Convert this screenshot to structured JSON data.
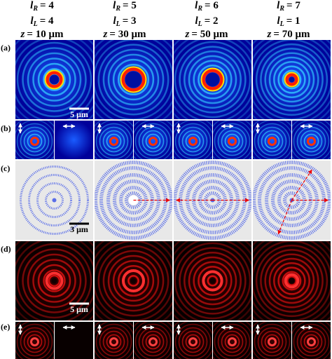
{
  "header": {
    "rows": [
      {
        "symbol": "l",
        "subscript": "R",
        "values": [
          "= 4",
          "= 5",
          "= 6",
          "= 7"
        ]
      },
      {
        "symbol": "l",
        "subscript": "L",
        "values": [
          "= 4",
          "= 3",
          "= 2",
          "= 1"
        ]
      },
      {
        "symbol": "z",
        "values": [
          "= 10 μm",
          "= 30 μm",
          "= 50 μm",
          "= 70 μm"
        ]
      }
    ]
  },
  "row_labels": [
    "(a)",
    "(b)",
    "(c)",
    "(d)",
    "(e)"
  ],
  "scale_bars": [
    {
      "label": "5 μm"
    },
    {
      "label": "3 μm"
    },
    {
      "label": "5 μm"
    }
  ]
}
